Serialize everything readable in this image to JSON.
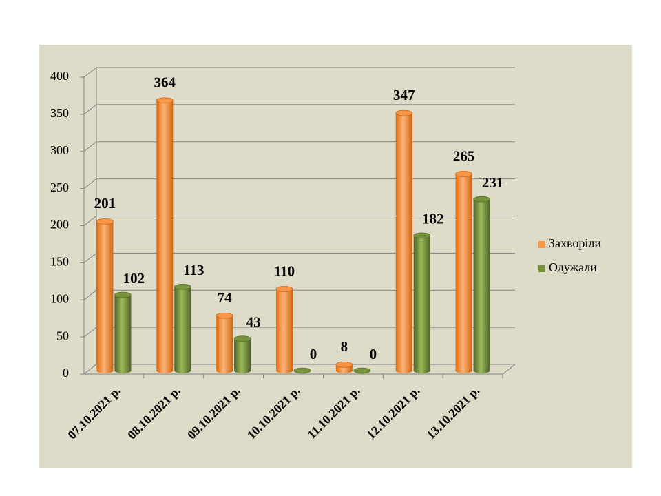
{
  "chart_data": {
    "type": "bar",
    "categories": [
      "07.10.2021 р.",
      "08.10.2021 р.",
      "09.10.2021 р.",
      "10.10.2021 р.",
      "11.10.2021 р.",
      "12.10.2021 р.",
      "13.10.2021 р."
    ],
    "series": [
      {
        "name": "Захворіли",
        "color": "#f79646",
        "values": [
          201,
          364,
          74,
          110,
          8,
          347,
          265
        ]
      },
      {
        "name": "Одужали",
        "color": "#77933c",
        "values": [
          102,
          113,
          43,
          0,
          0,
          182,
          231
        ]
      }
    ],
    "ylim": [
      0,
      400
    ],
    "yticks": [
      0,
      50,
      100,
      150,
      200,
      250,
      300,
      350,
      400
    ],
    "grid": true,
    "legend": "right"
  }
}
